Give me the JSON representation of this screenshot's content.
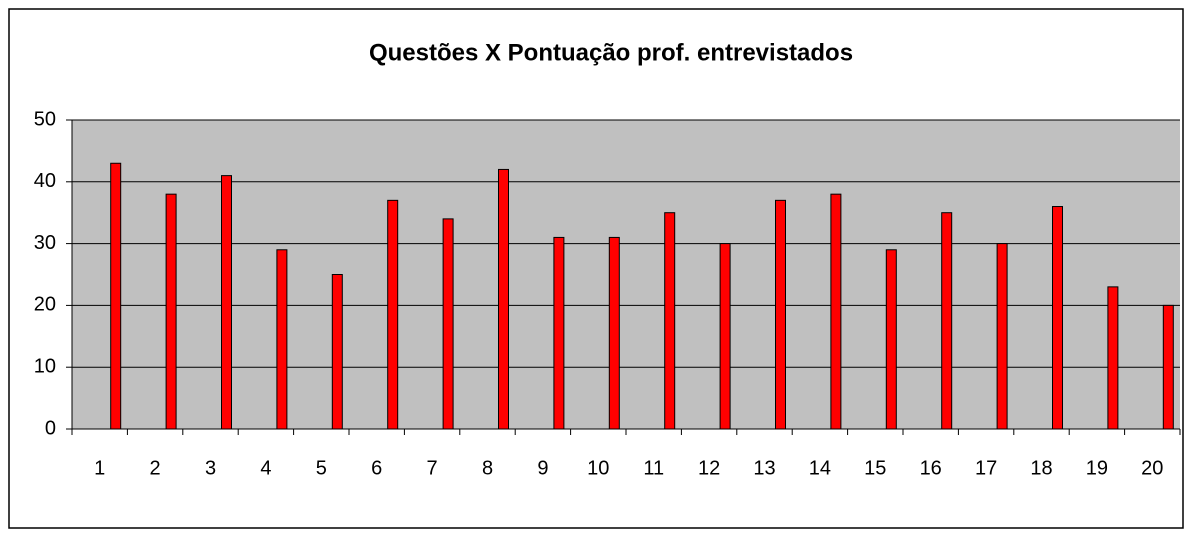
{
  "chart_data": {
    "type": "bar",
    "title": "Questões X Pontuação prof. entrevistados",
    "categories": [
      "1",
      "2",
      "3",
      "4",
      "5",
      "6",
      "7",
      "8",
      "9",
      "10",
      "11",
      "12",
      "13",
      "14",
      "15",
      "16",
      "17",
      "18",
      "19",
      "20"
    ],
    "values": [
      43,
      38,
      41,
      29,
      25,
      37,
      34,
      42,
      31,
      31,
      35,
      30,
      37,
      38,
      29,
      35,
      30,
      36,
      23,
      20
    ],
    "color": "#ff0000",
    "ylim": [
      0,
      50
    ],
    "yticks": [
      0,
      10,
      20,
      30,
      40,
      50
    ],
    "grid": true
  }
}
